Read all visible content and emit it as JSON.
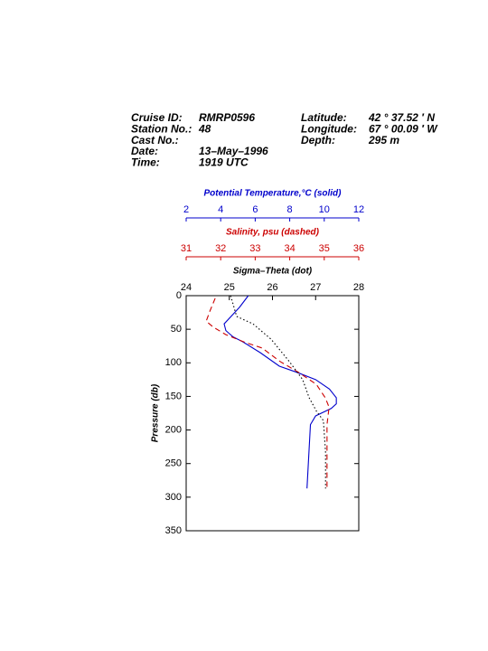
{
  "header": {
    "left": [
      [
        "Cruise ID:",
        "RMRP0596"
      ],
      [
        "Station No.:",
        "48"
      ],
      [
        "Cast No.:"
      ],
      [
        "Date:",
        "13–May–1996"
      ],
      [
        "Time:",
        "1919 UTC"
      ]
    ],
    "right": [
      [
        "Latitude:",
        "42 °  37.52 ′ N"
      ],
      [
        "Longitude:",
        "67 °  00.09 ′ W"
      ],
      [
        "Depth:",
        "295 m"
      ]
    ]
  },
  "chart_data": {
    "type": "line",
    "y_label": "Pressure (db)",
    "ylim": [
      0,
      350
    ],
    "yticks": [
      0,
      50,
      100,
      150,
      200,
      250,
      300,
      350
    ],
    "y_inverted": true,
    "series": [
      {
        "name": "Potential Temperature,°C (solid)",
        "color": "#0000cc",
        "style": "solid",
        "xlim": [
          2,
          12
        ],
        "xticks": [
          2,
          4,
          6,
          8,
          10,
          12
        ],
        "pressure": [
          0,
          17,
          31,
          42,
          52,
          61,
          69,
          85,
          105,
          114,
          125,
          139,
          152,
          161,
          168,
          179,
          192,
          287
        ],
        "values": [
          5.6,
          5.1,
          4.6,
          4.2,
          4.3,
          4.7,
          5.3,
          6.3,
          7.4,
          8.4,
          9.5,
          10.3,
          10.7,
          10.7,
          10.4,
          9.5,
          9.2,
          9.0
        ]
      },
      {
        "name": "Salinity, psu  (dashed)",
        "color": "#cc0000",
        "style": "dashed",
        "xlim": [
          31,
          36
        ],
        "xticks": [
          31,
          32,
          33,
          34,
          35,
          36
        ],
        "pressure": [
          4,
          24,
          38,
          47,
          58,
          69,
          78,
          98,
          114,
          132,
          152,
          166,
          192,
          233,
          287
        ],
        "values": [
          31.84,
          31.68,
          31.58,
          31.79,
          32.15,
          32.68,
          33.2,
          33.72,
          34.25,
          34.77,
          35.03,
          35.14,
          35.08,
          35.08,
          35.08
        ]
      },
      {
        "name": "Sigma–Theta (dot)",
        "color": "#000000",
        "style": "dotted",
        "xlim": [
          24,
          28
        ],
        "xticks": [
          24,
          25,
          26,
          27,
          28
        ],
        "pressure": [
          0,
          31,
          42,
          65,
          98,
          125,
          152,
          172,
          186,
          233,
          287
        ],
        "values": [
          25.03,
          25.17,
          25.55,
          25.97,
          26.39,
          26.7,
          26.85,
          27.02,
          27.18,
          27.23,
          27.23
        ]
      }
    ]
  }
}
